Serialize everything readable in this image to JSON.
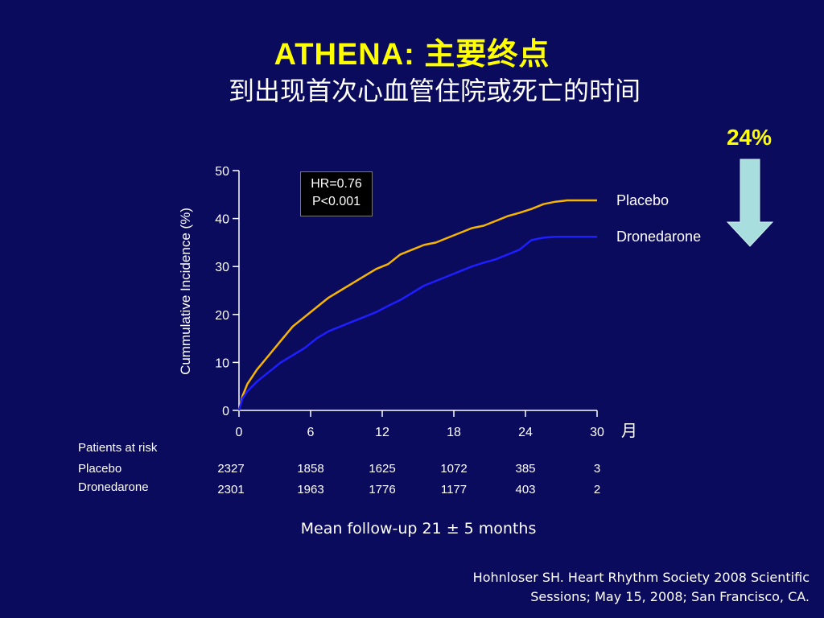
{
  "title": {
    "main": "ATHENA: 主要终点",
    "subtitle": "到出现首次心血管住院或死亡的时间"
  },
  "reduction": {
    "label": "24%",
    "arrow_color": "#a8dede"
  },
  "stats_box": {
    "hr": "HR=0.76",
    "p": "P<0.001"
  },
  "colors": {
    "background": "#0b0b5e",
    "placebo": "#f7b500",
    "dronedarone": "#1e1eff",
    "title": "#ffff00"
  },
  "chart_data": {
    "type": "line",
    "ylabel": "Cummulative Incidence (%)",
    "xlabel": "月",
    "xlim": [
      0,
      30
    ],
    "ylim": [
      0,
      50
    ],
    "x_ticks": [
      "0",
      "6",
      "12",
      "18",
      "24",
      "30"
    ],
    "y_ticks": [
      "0",
      "10",
      "20",
      "30",
      "40",
      "50"
    ],
    "series": [
      {
        "name": "Placebo",
        "color": "#f7b500",
        "x": [
          0,
          0.3,
          0.7,
          1.5,
          2.5,
          3.5,
          4.5,
          5.5,
          6.5,
          7.5,
          8.5,
          9.5,
          10.5,
          11.5,
          12.5,
          13.5,
          14.5,
          15.5,
          16.5,
          17.5,
          18.5,
          19.5,
          20.5,
          21.5,
          22.5,
          23.5,
          24.5,
          25.5,
          26.5,
          27.5,
          28.5,
          30
        ],
        "y": [
          0,
          3,
          5.5,
          8.5,
          11.5,
          14.5,
          17.5,
          19.5,
          21.5,
          23.5,
          25,
          26.5,
          28,
          29.5,
          30.5,
          32.5,
          33.5,
          34.5,
          35,
          36,
          37,
          38,
          38.5,
          39.5,
          40.5,
          41.2,
          42,
          43,
          43.5,
          43.8,
          43.8,
          43.8
        ]
      },
      {
        "name": "Dronedarone",
        "color": "#1e1eff",
        "x": [
          0,
          0.3,
          0.7,
          1.5,
          2.5,
          3.5,
          4.5,
          5.5,
          6.5,
          7.5,
          8.5,
          9.5,
          10.5,
          11.5,
          12.5,
          13.5,
          14.5,
          15.5,
          16.5,
          17.5,
          18.5,
          19.5,
          20.5,
          21.5,
          22.5,
          23.5,
          24.5,
          25.5,
          26.5,
          27.5,
          28.5,
          30
        ],
        "y": [
          0,
          2.5,
          4,
          6,
          8,
          10,
          11.5,
          13,
          15,
          16.5,
          17.5,
          18.5,
          19.5,
          20.5,
          21.8,
          23,
          24.5,
          26,
          27,
          28,
          29,
          30,
          30.8,
          31.5,
          32.5,
          33.5,
          35.5,
          36,
          36.2,
          36.2,
          36.2,
          36.2
        ]
      }
    ]
  },
  "risk_table": {
    "title": "Patients at risk",
    "rows": [
      {
        "label": "Placebo",
        "values": [
          "2327",
          "1858",
          "1625",
          "1072",
          "385",
          "3"
        ]
      },
      {
        "label": "Dronedarone",
        "values": [
          "2301",
          "1963",
          "1776",
          "1177",
          "403",
          "2"
        ]
      }
    ]
  },
  "footer": {
    "followup": "Mean follow-up 21 ± 5 months",
    "citation_line1": "Hohnloser SH. Heart Rhythm Society 2008 Scientific",
    "citation_line2": "Sessions; May 15, 2008; San Francisco, CA."
  }
}
